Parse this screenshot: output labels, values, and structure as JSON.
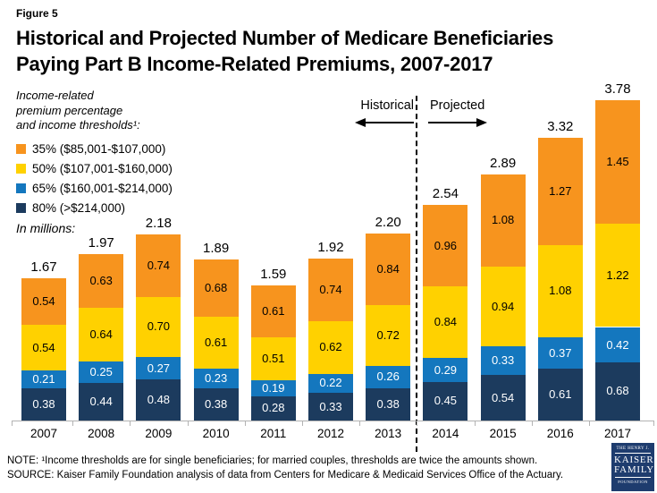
{
  "page": {
    "figure_label": "Figure 5",
    "title_line1": "Historical and Projected Number of Medicare Beneficiaries",
    "title_line2": "Paying Part B Income-Related Premiums, 2007-2017"
  },
  "legend": {
    "header_line1": "Income-related",
    "header_line2": "premium percentage",
    "header_line3": "and income thresholds¹:",
    "items": [
      {
        "label": "35% ($85,001-$107,000)",
        "color": "#F7941E"
      },
      {
        "label": "50% ($107,001-$160,000)",
        "color": "#FFD100"
      },
      {
        "label": "65% ($160,001-$214,000)",
        "color": "#1477BE"
      },
      {
        "label": "80% (>$214,000)",
        "color": "#1C3B5E"
      }
    ],
    "units_label": "In millions:"
  },
  "annotations": {
    "historical_label": "Historical",
    "projected_label": "Projected"
  },
  "chart_data": {
    "type": "bar",
    "stacked": true,
    "title": "Historical and Projected Number of Medicare Beneficiaries Paying Part B Income-Related Premiums, 2007-2017",
    "units": "In millions",
    "ylim": [
      0,
      4
    ],
    "grid": false,
    "legend_position": "top-left",
    "categories": [
      "2007",
      "2008",
      "2009",
      "2010",
      "2011",
      "2012",
      "2013",
      "2014",
      "2015",
      "2016",
      "2017"
    ],
    "series": [
      {
        "name": "80% (>$214,000)",
        "rate": "80pct",
        "color": "#1C3B5E",
        "label_color": "#FFFFFF",
        "values": [
          0.38,
          0.44,
          0.48,
          0.38,
          0.28,
          0.33,
          0.38,
          0.45,
          0.54,
          0.61,
          0.68
        ]
      },
      {
        "name": "65% ($160,001-$214,000)",
        "rate": "65pct",
        "color": "#1477BE",
        "label_color": "#FFFFFF",
        "values": [
          0.21,
          0.25,
          0.27,
          0.23,
          0.19,
          0.22,
          0.26,
          0.29,
          0.33,
          0.37,
          0.42
        ]
      },
      {
        "name": "50% ($107,001-$160,000)",
        "rate": "50pct",
        "color": "#FFD100",
        "label_color": "#000000",
        "values": [
          0.54,
          0.64,
          0.7,
          0.61,
          0.51,
          0.62,
          0.72,
          0.84,
          0.94,
          1.08,
          1.22
        ]
      },
      {
        "name": "35% ($85,001-$107,000)",
        "rate": "35pct",
        "color": "#F7941E",
        "label_color": "#000000",
        "values": [
          0.54,
          0.63,
          0.74,
          0.68,
          0.61,
          0.74,
          0.84,
          0.96,
          1.08,
          1.27,
          1.45
        ]
      }
    ],
    "totals": [
      1.67,
      1.97,
      2.18,
      1.89,
      1.59,
      1.92,
      2.2,
      2.54,
      2.89,
      3.32,
      3.78
    ],
    "historical_range": "2007-2013",
    "projected_range": "2014-2017"
  },
  "footer": {
    "note": "NOTE: ¹Income thresholds are for single beneficiaries; for married couples, thresholds are twice the amounts shown.",
    "source": "SOURCE: Kaiser Family Foundation analysis of data from Centers for Medicare & Medicaid Services Office of the Actuary."
  },
  "logo": {
    "line1": "THE HENRY J.",
    "line2": "KAISER",
    "line3": "FAMILY",
    "line4": "FOUNDATION"
  }
}
